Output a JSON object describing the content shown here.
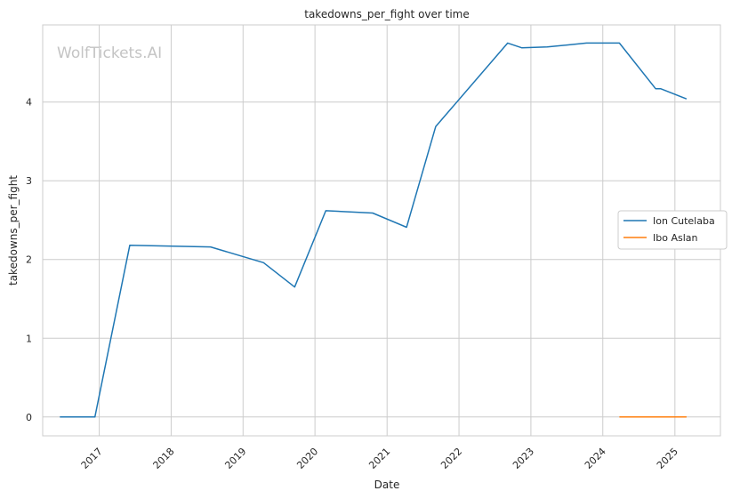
{
  "watermark": "WolfTickets.AI",
  "chart_data": {
    "type": "line",
    "title": "takedowns_per_fight over time",
    "xlabel": "Date",
    "ylabel": "takedowns_per_fight",
    "x_ticks": [
      "2017",
      "2018",
      "2019",
      "2020",
      "2021",
      "2022",
      "2023",
      "2024",
      "2025"
    ],
    "y_ticks": [
      0,
      1,
      2,
      3,
      4
    ],
    "xlim": [
      "2016-03-20",
      "2025-08-20"
    ],
    "ylim": [
      -0.24,
      4.98
    ],
    "grid": true,
    "legend_position": "center-right",
    "series": [
      {
        "name": "Ion Cutelaba",
        "color": "#1f77b4",
        "points": [
          [
            "2016-06-15",
            0.0
          ],
          [
            "2016-12-10",
            0.0
          ],
          [
            "2017-06-05",
            2.18
          ],
          [
            "2018-07-20",
            2.16
          ],
          [
            "2019-04-15",
            1.96
          ],
          [
            "2019-09-20",
            1.65
          ],
          [
            "2020-02-25",
            2.62
          ],
          [
            "2020-10-20",
            2.59
          ],
          [
            "2021-04-10",
            2.41
          ],
          [
            "2021-09-05",
            3.69
          ],
          [
            "2022-09-05",
            4.75
          ],
          [
            "2022-11-15",
            4.69
          ],
          [
            "2023-03-25",
            4.7
          ],
          [
            "2023-10-10",
            4.75
          ],
          [
            "2024-03-25",
            4.75
          ],
          [
            "2024-09-25",
            4.17
          ],
          [
            "2024-10-20",
            4.17
          ],
          [
            "2025-03-01",
            4.04
          ]
        ]
      },
      {
        "name": "Ibo Aslan",
        "color": "#ff7f0e",
        "points": [
          [
            "2024-03-25",
            0.0
          ],
          [
            "2025-03-01",
            0.0
          ]
        ]
      }
    ]
  }
}
